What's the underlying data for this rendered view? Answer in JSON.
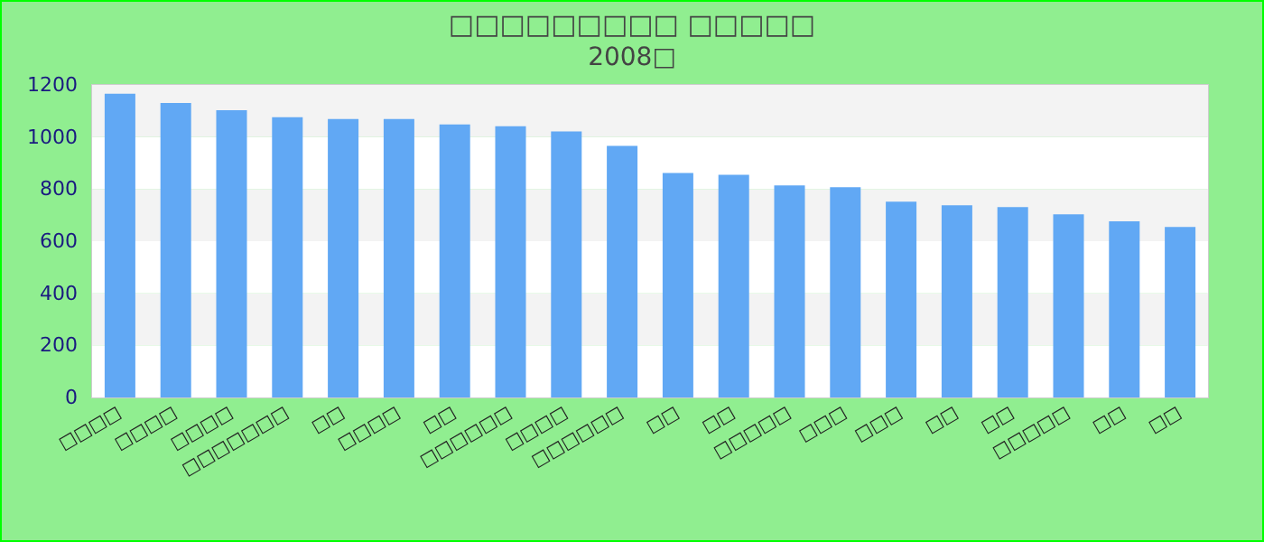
{
  "chart_data": {
    "type": "bar",
    "title": "□□□□□□□□□ □□□□□",
    "subtitle": "2008□",
    "categories": [
      "□□□□",
      "□□□□",
      "□□□□",
      "□□□□□□□",
      "□□",
      "□□□□",
      "□□",
      "□□□□□□",
      "□□□□",
      "□□□□□□",
      "□□",
      "□□",
      "□□□□□",
      "□□□",
      "□□□",
      "□□",
      "□□",
      "□□□□□",
      "□□",
      "□□"
    ],
    "values": [
      1166,
      1131,
      1103,
      1076,
      1069,
      1069,
      1048,
      1041,
      1021,
      966,
      862,
      855,
      814,
      807,
      752,
      738,
      731,
      703,
      676,
      655
    ],
    "color": "#61a8f4",
    "ylim": [
      0,
      1200
    ],
    "yticks": [
      0,
      200,
      400,
      600,
      800,
      1000,
      1200
    ]
  }
}
